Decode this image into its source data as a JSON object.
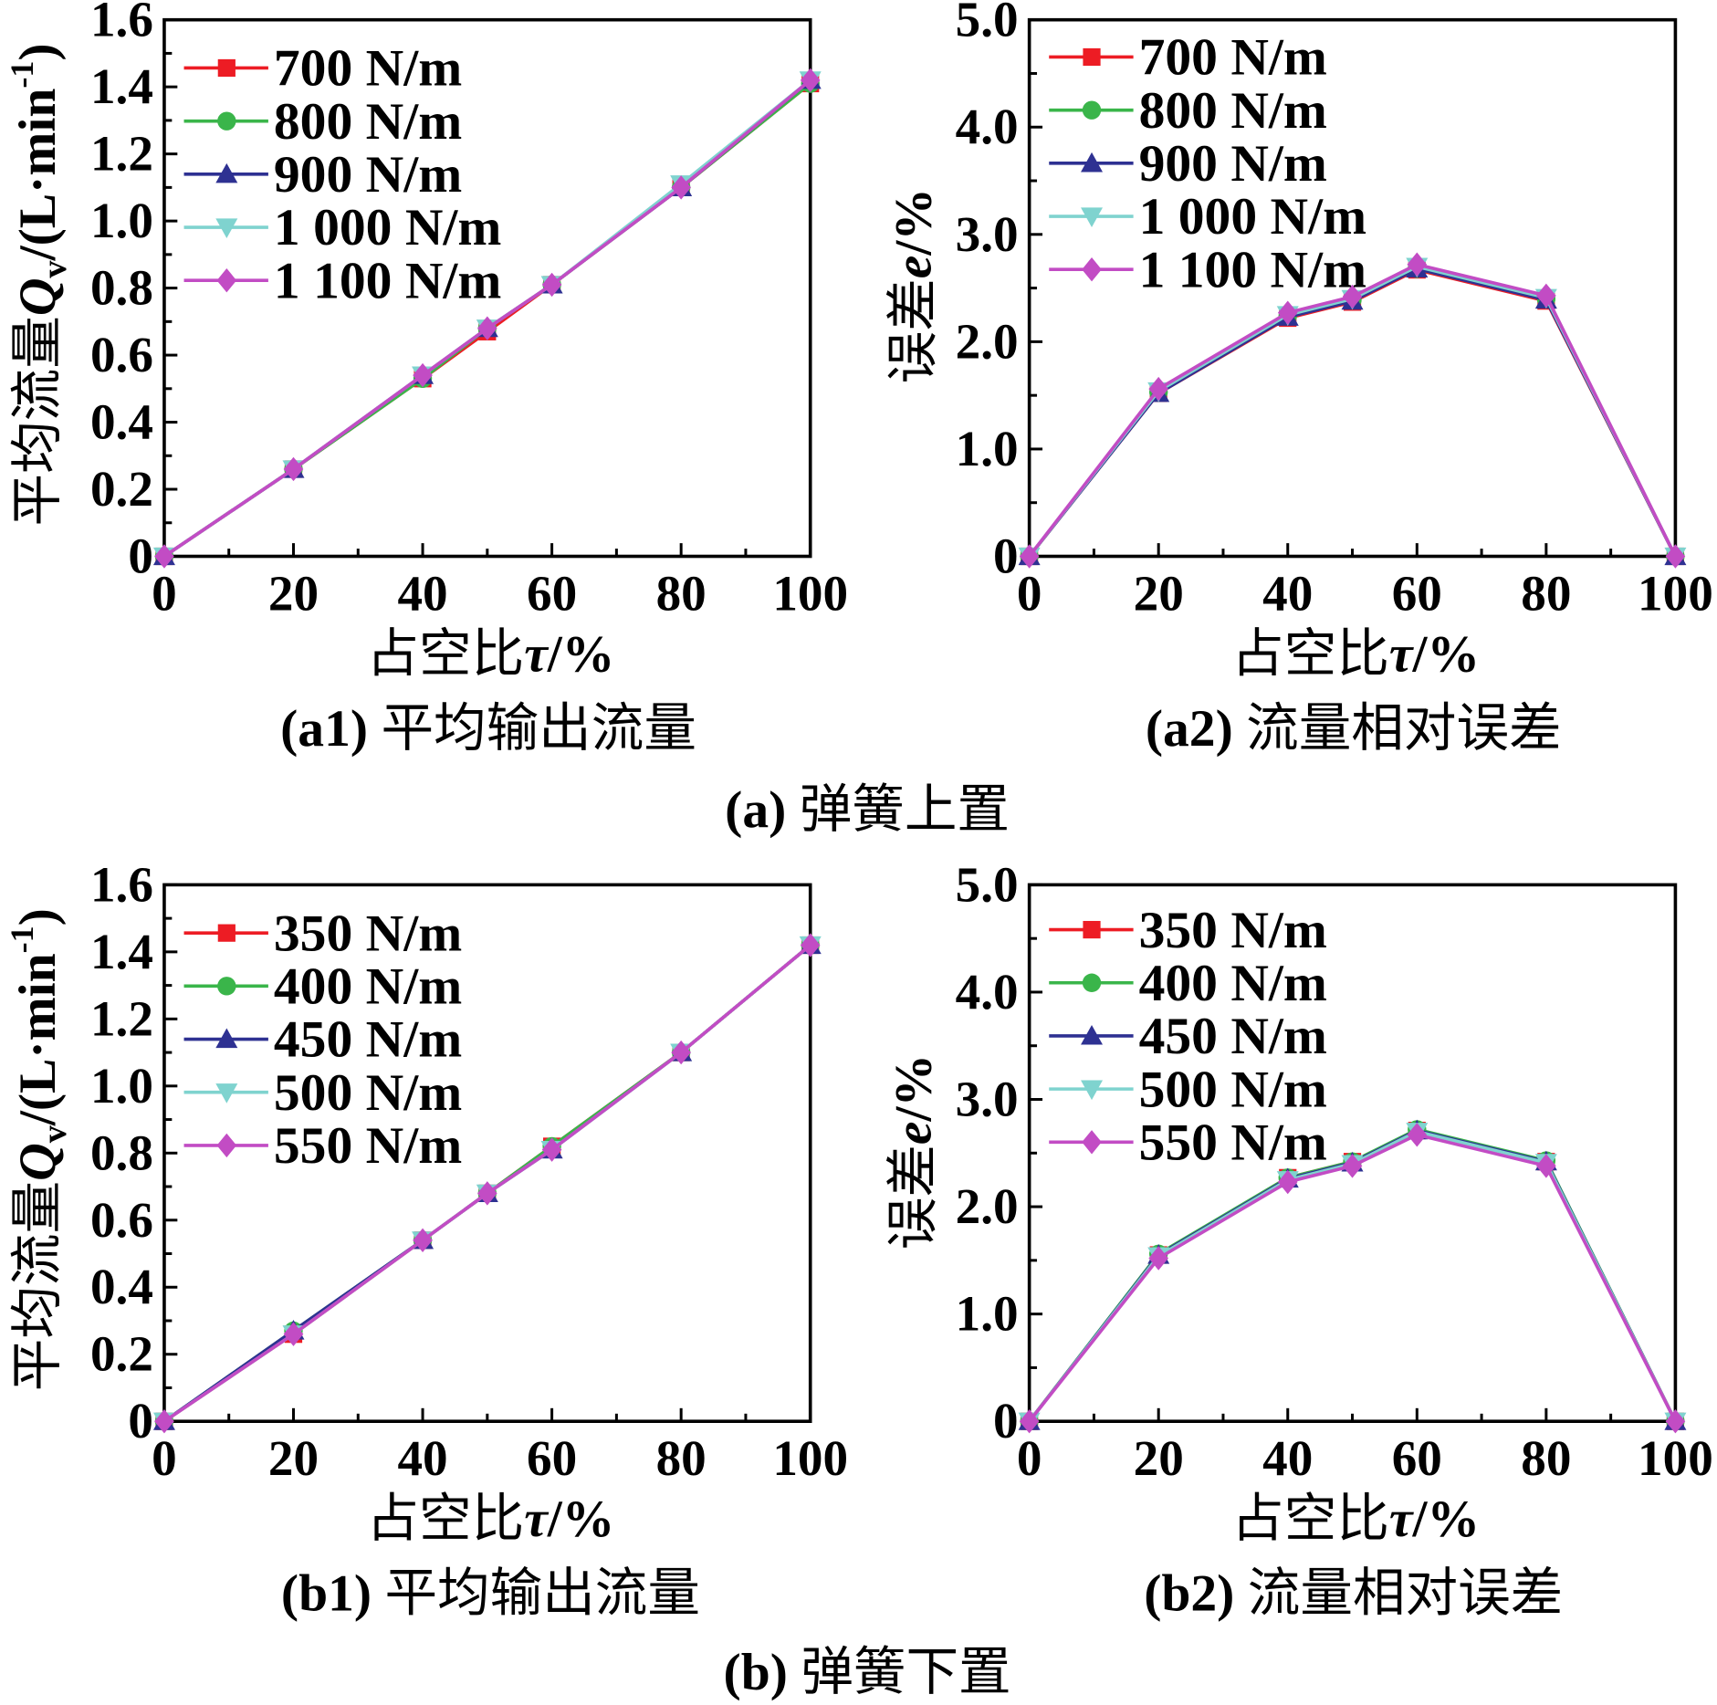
{
  "figure": {
    "groups": [
      {
        "label": "(a)",
        "title": "弹簧上置"
      },
      {
        "label": "(b)",
        "title": "弹簧下置"
      }
    ]
  },
  "chart_data": [
    {
      "type": "line",
      "panel_label": "(a1)",
      "title": "平均输出流量",
      "xlabel": {
        "text": "占空比",
        "symbol": "τ",
        "unit": "/%"
      },
      "ylabel": {
        "text": "平均流量",
        "symbol": "Q",
        "subscript": "v",
        "unit": "/(L·min",
        "superscript": "-1",
        "close": ")"
      },
      "xlim": [
        0,
        100
      ],
      "ylim": [
        0,
        1.6
      ],
      "xticks": [
        0,
        20,
        40,
        60,
        80,
        100
      ],
      "xtick_labels": [
        "0",
        "20",
        "40",
        "60",
        "80",
        "100"
      ],
      "yticks": [
        0,
        0.2,
        0.4,
        0.6,
        0.8,
        1.0,
        1.2,
        1.4,
        1.6
      ],
      "ytick_labels": [
        "0",
        "0.2",
        "0.4",
        "0.6",
        "0.8",
        "1.0",
        "1.2",
        "1.4",
        "1.6"
      ],
      "legend": "top-left",
      "grid": false,
      "x": [
        0,
        20,
        40,
        50,
        60,
        80,
        100
      ],
      "series": [
        {
          "name": "700 N/m",
          "color": "#ed1c24",
          "marker": "square",
          "values": [
            0,
            0.26,
            0.53,
            0.67,
            0.81,
            1.1,
            1.41
          ]
        },
        {
          "name": "800 N/m",
          "color": "#3ab54a",
          "marker": "circle",
          "values": [
            0,
            0.26,
            0.53,
            0.68,
            0.81,
            1.1,
            1.41
          ]
        },
        {
          "name": "900 N/m",
          "color": "#2e3192",
          "marker": "triangle-up",
          "values": [
            0,
            0.26,
            0.54,
            0.68,
            0.81,
            1.1,
            1.42
          ]
        },
        {
          "name": "1 000 N/m",
          "color": "#7fd3cf",
          "marker": "triangle-down",
          "values": [
            0,
            0.26,
            0.54,
            0.68,
            0.81,
            1.11,
            1.42
          ]
        },
        {
          "name": "1 100 N/m",
          "color": "#c24cc4",
          "marker": "diamond",
          "values": [
            0,
            0.26,
            0.54,
            0.68,
            0.81,
            1.1,
            1.42
          ]
        }
      ]
    },
    {
      "type": "line",
      "panel_label": "(a2)",
      "title": "流量相对误差",
      "xlabel": {
        "text": "占空比",
        "symbol": "τ",
        "unit": "/%"
      },
      "ylabel": {
        "text": "误差",
        "symbol": "e",
        "unit": "/%"
      },
      "xlim": [
        0,
        100
      ],
      "ylim": [
        0,
        5.0
      ],
      "xticks": [
        0,
        20,
        40,
        60,
        80,
        100
      ],
      "xtick_labels": [
        "0",
        "20",
        "40",
        "60",
        "80",
        "100"
      ],
      "yticks": [
        0,
        1,
        2,
        3,
        4,
        5
      ],
      "ytick_labels": [
        "0",
        "1.0",
        "2.0",
        "3.0",
        "4.0",
        "5.0"
      ],
      "legend": "top-left",
      "grid": false,
      "x": [
        0,
        20,
        40,
        50,
        60,
        80,
        100
      ],
      "series": [
        {
          "name": "700 N/m",
          "color": "#ed1c24",
          "marker": "square",
          "values": [
            0,
            1.52,
            2.22,
            2.37,
            2.67,
            2.38,
            0
          ]
        },
        {
          "name": "800 N/m",
          "color": "#3ab54a",
          "marker": "circle",
          "values": [
            0,
            1.53,
            2.24,
            2.39,
            2.68,
            2.4,
            0
          ]
        },
        {
          "name": "900 N/m",
          "color": "#2e3192",
          "marker": "triangle-up",
          "values": [
            0,
            1.52,
            2.23,
            2.38,
            2.68,
            2.39,
            0
          ]
        },
        {
          "name": "1 000 N/m",
          "color": "#7fd3cf",
          "marker": "triangle-down",
          "values": [
            0,
            1.54,
            2.25,
            2.4,
            2.7,
            2.41,
            0
          ]
        },
        {
          "name": "1 100 N/m",
          "color": "#c24cc4",
          "marker": "diamond",
          "values": [
            0,
            1.56,
            2.27,
            2.42,
            2.72,
            2.43,
            0
          ]
        }
      ]
    },
    {
      "type": "line",
      "panel_label": "(b1)",
      "title": "平均输出流量",
      "xlabel": {
        "text": "占空比",
        "symbol": "τ",
        "unit": "/%"
      },
      "ylabel": {
        "text": "平均流量",
        "symbol": "Q",
        "subscript": "v",
        "unit": "/(L·min",
        "superscript": "-1",
        "close": ")"
      },
      "xlim": [
        0,
        100
      ],
      "ylim": [
        0,
        1.6
      ],
      "xticks": [
        0,
        20,
        40,
        60,
        80,
        100
      ],
      "xtick_labels": [
        "0",
        "20",
        "40",
        "60",
        "80",
        "100"
      ],
      "yticks": [
        0,
        0.2,
        0.4,
        0.6,
        0.8,
        1.0,
        1.2,
        1.4,
        1.6
      ],
      "ytick_labels": [
        "0",
        "0.2",
        "0.4",
        "0.6",
        "0.8",
        "1.0",
        "1.2",
        "1.4",
        "1.6"
      ],
      "legend": "top-left",
      "grid": false,
      "x": [
        0,
        20,
        40,
        50,
        60,
        80,
        100
      ],
      "series": [
        {
          "name": "350 N/m",
          "color": "#ed1c24",
          "marker": "square",
          "values": [
            0,
            0.26,
            0.54,
            0.68,
            0.82,
            1.1,
            1.42
          ]
        },
        {
          "name": "400 N/m",
          "color": "#3ab54a",
          "marker": "circle",
          "values": [
            0,
            0.27,
            0.54,
            0.68,
            0.82,
            1.1,
            1.42
          ]
        },
        {
          "name": "450 N/m",
          "color": "#2e3192",
          "marker": "triangle-up",
          "values": [
            0,
            0.27,
            0.54,
            0.68,
            0.81,
            1.1,
            1.42
          ]
        },
        {
          "name": "500 N/m",
          "color": "#7fd3cf",
          "marker": "triangle-down",
          "values": [
            0,
            0.26,
            0.54,
            0.68,
            0.81,
            1.1,
            1.42
          ]
        },
        {
          "name": "550 N/m",
          "color": "#c24cc4",
          "marker": "diamond",
          "values": [
            0,
            0.26,
            0.54,
            0.68,
            0.81,
            1.1,
            1.42
          ]
        }
      ]
    },
    {
      "type": "line",
      "panel_label": "(b2)",
      "title": "流量相对误差",
      "xlabel": {
        "text": "占空比",
        "symbol": "τ",
        "unit": "/%"
      },
      "ylabel": {
        "text": "误差",
        "symbol": "e",
        "unit": "/%"
      },
      "xlim": [
        0,
        100
      ],
      "ylim": [
        0,
        5.0
      ],
      "xticks": [
        0,
        20,
        40,
        60,
        80,
        100
      ],
      "xtick_labels": [
        "0",
        "20",
        "40",
        "60",
        "80",
        "100"
      ],
      "yticks": [
        0,
        1,
        2,
        3,
        4,
        5
      ],
      "ytick_labels": [
        "0",
        "1.0",
        "2.0",
        "3.0",
        "4.0",
        "5.0"
      ],
      "legend": "top-left",
      "grid": false,
      "x": [
        0,
        20,
        40,
        50,
        60,
        80,
        100
      ],
      "series": [
        {
          "name": "350 N/m",
          "color": "#ed1c24",
          "marker": "square",
          "values": [
            0,
            1.55,
            2.27,
            2.42,
            2.71,
            2.42,
            0
          ]
        },
        {
          "name": "400 N/m",
          "color": "#3ab54a",
          "marker": "circle",
          "values": [
            0,
            1.56,
            2.27,
            2.42,
            2.72,
            2.43,
            0
          ]
        },
        {
          "name": "450 N/m",
          "color": "#2e3192",
          "marker": "triangle-up",
          "values": [
            0,
            1.55,
            2.26,
            2.41,
            2.71,
            2.42,
            0
          ]
        },
        {
          "name": "500 N/m",
          "color": "#7fd3cf",
          "marker": "triangle-down",
          "values": [
            0,
            1.54,
            2.25,
            2.4,
            2.7,
            2.41,
            0
          ]
        },
        {
          "name": "550 N/m",
          "color": "#c24cc4",
          "marker": "diamond",
          "values": [
            0,
            1.52,
            2.23,
            2.38,
            2.67,
            2.38,
            0
          ]
        }
      ]
    }
  ]
}
